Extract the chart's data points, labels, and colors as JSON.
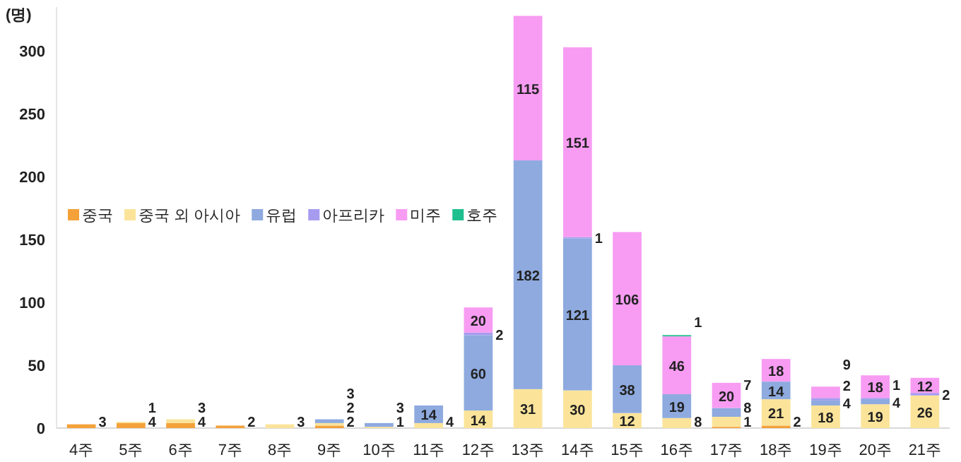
{
  "chart_data": {
    "type": "bar",
    "stacked": true,
    "ylabel": "(명)",
    "categories": [
      "4주",
      "5주",
      "6주",
      "7주",
      "8주",
      "9주",
      "10주",
      "11주",
      "12주",
      "13주",
      "14주",
      "15주",
      "16주",
      "17주",
      "18주",
      "19주",
      "20주",
      "21주"
    ],
    "series": [
      {
        "name": "중국",
        "color": "#f4a13a",
        "values": [
          3,
          4,
          4,
          2,
          null,
          2,
          null,
          null,
          null,
          null,
          null,
          null,
          null,
          1,
          2,
          null,
          null,
          null
        ]
      },
      {
        "name": "중국 외 아시아",
        "color": "#fbe49a",
        "values": [
          null,
          1,
          3,
          null,
          3,
          2,
          1,
          4,
          14,
          31,
          30,
          12,
          8,
          8,
          21,
          18,
          19,
          26
        ]
      },
      {
        "name": "유럽",
        "color": "#8eaadf",
        "values": [
          null,
          null,
          null,
          null,
          null,
          3,
          3,
          14,
          60,
          182,
          121,
          38,
          19,
          7,
          14,
          4,
          4,
          null
        ]
      },
      {
        "name": "아프리카",
        "color": "#a79bf0",
        "values": [
          null,
          null,
          null,
          null,
          null,
          null,
          null,
          null,
          2,
          null,
          1,
          null,
          null,
          null,
          null,
          2,
          1,
          2
        ]
      },
      {
        "name": "미주",
        "color": "#f79cf2",
        "values": [
          null,
          null,
          null,
          null,
          null,
          null,
          null,
          null,
          20,
          115,
          151,
          106,
          46,
          20,
          18,
          9,
          18,
          12
        ]
      },
      {
        "name": "호주",
        "color": "#1fbf8f",
        "values": [
          null,
          null,
          null,
          null,
          null,
          null,
          null,
          null,
          null,
          null,
          null,
          null,
          1,
          null,
          null,
          null,
          null,
          null
        ]
      }
    ],
    "ylim": [
      0,
      335
    ],
    "yticks": [
      0,
      50,
      100,
      150,
      200,
      250,
      300
    ],
    "data_labels": true,
    "legend": "left",
    "grid": false
  }
}
